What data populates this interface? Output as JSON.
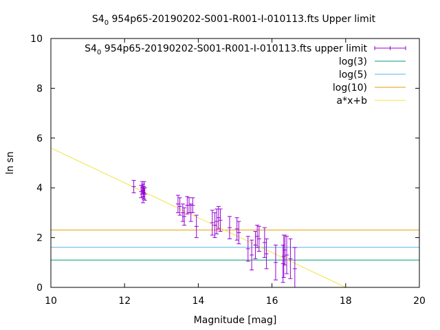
{
  "chart_data": {
    "type": "scatter",
    "title_parts": {
      "prefix": "S4",
      "subscript": "0",
      "suffix": "954p65-20190202-S001-R001-I-010113.fts Upper limit"
    },
    "xlabel": "Magnitude [mag]",
    "ylabel": "ln sn",
    "xlim": [
      10,
      20
    ],
    "ylim": [
      0,
      10
    ],
    "x_ticks": [
      10,
      12,
      14,
      16,
      18,
      20
    ],
    "y_ticks": [
      0,
      2,
      4,
      6,
      8,
      10
    ],
    "grid": false,
    "legend_position": "top-right",
    "series": [
      {
        "name_parts": {
          "prefix": "S4",
          "subscript": "0",
          "suffix": "954p65-20190202-S001-R001-I-010113.fts upper limit"
        },
        "kind": "errorbar",
        "color": "#9400d3",
        "x": [
          12.25,
          12.45,
          12.48,
          12.5,
          12.5,
          12.52,
          12.53,
          12.55,
          13.45,
          13.5,
          13.58,
          13.62,
          13.7,
          13.75,
          13.8,
          13.85,
          13.95,
          14.38,
          14.45,
          14.5,
          14.55,
          14.6,
          14.85,
          15.05,
          15.1,
          15.35,
          15.45,
          15.55,
          15.6,
          15.65,
          15.8,
          15.85,
          16.1,
          16.3,
          16.32,
          16.35,
          16.4,
          16.5,
          16.62
        ],
        "y": [
          4.05,
          3.85,
          4.0,
          3.65,
          3.9,
          3.8,
          4.0,
          3.75,
          3.35,
          3.25,
          3.0,
          2.85,
          3.3,
          3.3,
          3.0,
          3.3,
          2.45,
          2.6,
          2.5,
          2.65,
          2.8,
          2.7,
          2.4,
          2.35,
          2.2,
          1.55,
          1.3,
          1.7,
          2.05,
          1.95,
          1.8,
          1.35,
          1.0,
          0.95,
          1.25,
          1.5,
          1.3,
          1.15,
          0.75
        ],
        "err": [
          0.25,
          0.25,
          0.25,
          0.25,
          0.25,
          0.25,
          0.25,
          0.25,
          0.35,
          0.35,
          0.35,
          0.35,
          0.35,
          0.3,
          0.35,
          0.3,
          0.45,
          0.5,
          0.5,
          0.5,
          0.45,
          0.45,
          0.45,
          0.45,
          0.45,
          0.5,
          0.6,
          0.55,
          0.45,
          0.5,
          0.6,
          0.6,
          0.7,
          0.75,
          0.85,
          0.6,
          0.75,
          0.8,
          0.85
        ]
      },
      {
        "name": "log(3)",
        "kind": "hline",
        "y": 1.0986,
        "color": "#009e73"
      },
      {
        "name": "log(5)",
        "kind": "hline",
        "y": 1.6094,
        "color": "#56b4e9"
      },
      {
        "name": "log(10)",
        "kind": "hline",
        "y": 2.3026,
        "color": "#e69f00"
      },
      {
        "name": "a*x+b",
        "kind": "line",
        "x": [
          10,
          18
        ],
        "y": [
          5.6,
          0
        ],
        "color": "#f0e442"
      }
    ]
  }
}
